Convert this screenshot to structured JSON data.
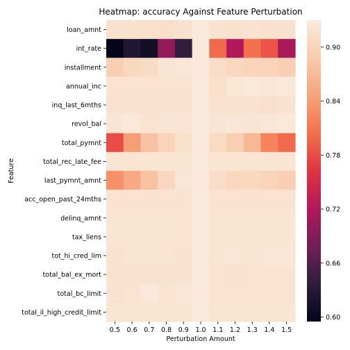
{
  "chart_data": {
    "type": "heatmap",
    "title": "Heatmap: accuracy Against Feature Perturbation",
    "xlabel": "Perturbation Amount",
    "ylabel": "Feature",
    "x": [
      "0.5",
      "0.6",
      "0.7",
      "0.8",
      "0.9",
      "1.0",
      "1.1",
      "1.2",
      "1.3",
      "1.4",
      "1.5"
    ],
    "y": [
      "loan_amnt",
      "int_rate",
      "installment",
      "annual_inc",
      "inq_last_6mths",
      "revol_bal",
      "total_pymnt",
      "total_rec_late_fee",
      "last_pymnt_amnt",
      "acc_open_past_24mths",
      "delinq_amnt",
      "tax_liens",
      "tot_hi_cred_lim",
      "total_bal_ex_mort",
      "total_bc_limit",
      "total_il_high_credit_limit"
    ],
    "values": [
      [
        0.917,
        0.917,
        0.915,
        0.914,
        0.917,
        0.928,
        0.919,
        0.917,
        0.919,
        0.917,
        0.917
      ],
      [
        0.597,
        0.625,
        0.611,
        0.701,
        0.638,
        0.928,
        0.8,
        0.72,
        0.805,
        0.785,
        0.715
      ],
      [
        0.894,
        0.905,
        0.91,
        0.922,
        0.923,
        0.928,
        0.912,
        0.905,
        0.9,
        0.9,
        0.894
      ],
      [
        0.92,
        0.92,
        0.92,
        0.92,
        0.92,
        0.928,
        0.915,
        0.923,
        0.927,
        0.924,
        0.926
      ],
      [
        0.918,
        0.918,
        0.918,
        0.918,
        0.918,
        0.928,
        0.918,
        0.918,
        0.918,
        0.916,
        0.918
      ],
      [
        0.922,
        0.926,
        0.92,
        0.922,
        0.922,
        0.928,
        0.922,
        0.924,
        0.922,
        0.924,
        0.926
      ],
      [
        0.78,
        0.842,
        0.88,
        0.9,
        0.915,
        0.928,
        0.908,
        0.893,
        0.868,
        0.82,
        0.8
      ],
      [
        0.921,
        0.921,
        0.921,
        0.921,
        0.921,
        0.928,
        0.921,
        0.921,
        0.921,
        0.921,
        0.921
      ],
      [
        0.83,
        0.852,
        0.878,
        0.904,
        0.924,
        0.928,
        0.912,
        0.903,
        0.905,
        0.9,
        0.893
      ],
      [
        0.92,
        0.92,
        0.92,
        0.92,
        0.92,
        0.928,
        0.92,
        0.92,
        0.92,
        0.92,
        0.92
      ],
      [
        0.921,
        0.921,
        0.921,
        0.921,
        0.921,
        0.928,
        0.921,
        0.921,
        0.921,
        0.921,
        0.921
      ],
      [
        0.921,
        0.921,
        0.921,
        0.921,
        0.921,
        0.928,
        0.921,
        0.921,
        0.921,
        0.921,
        0.921
      ],
      [
        0.918,
        0.921,
        0.921,
        0.921,
        0.919,
        0.928,
        0.921,
        0.924,
        0.921,
        0.923,
        0.924
      ],
      [
        0.918,
        0.918,
        0.918,
        0.919,
        0.919,
        0.928,
        0.92,
        0.919,
        0.92,
        0.92,
        0.92
      ],
      [
        0.918,
        0.92,
        0.928,
        0.92,
        0.924,
        0.928,
        0.92,
        0.92,
        0.92,
        0.92,
        0.92
      ],
      [
        0.921,
        0.921,
        0.921,
        0.921,
        0.921,
        0.928,
        0.921,
        0.921,
        0.921,
        0.921,
        0.921
      ]
    ],
    "colorbar": {
      "ticks": [
        "0.60",
        "0.66",
        "0.72",
        "0.78",
        "0.84",
        "0.90"
      ],
      "vmin": 0.595,
      "vmax": 0.93,
      "colormap": "rocket"
    }
  }
}
